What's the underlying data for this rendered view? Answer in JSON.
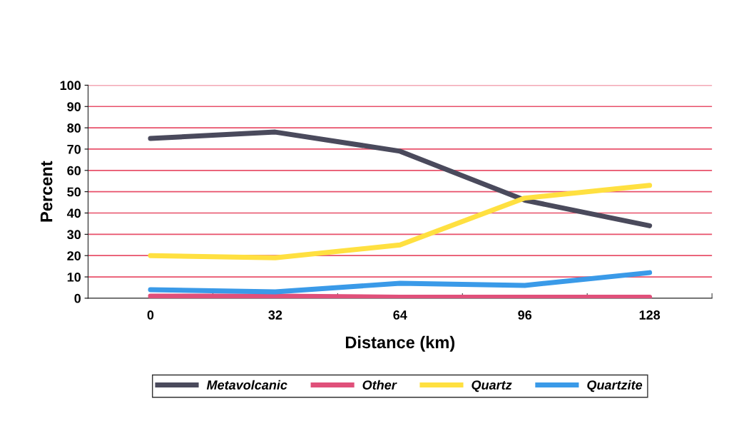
{
  "chart_data": {
    "type": "line",
    "xlabel": "Distance (km)",
    "ylabel": "Percent",
    "categories": [
      "0",
      "32",
      "64",
      "96",
      "128"
    ],
    "series": [
      {
        "name": "Metavolcanic",
        "color": "#4a4a5c",
        "values": [
          75,
          78,
          69,
          46,
          34
        ]
      },
      {
        "name": "Other",
        "color": "#e0507a",
        "values": [
          1,
          1,
          0.5,
          0.5,
          0.5
        ]
      },
      {
        "name": "Quartz",
        "color": "#ffe040",
        "values": [
          20,
          19,
          25,
          47,
          53
        ]
      },
      {
        "name": "Quartzite",
        "color": "#3a9ae8",
        "values": [
          4,
          3,
          7,
          6,
          12
        ]
      }
    ],
    "ylim": [
      0,
      100
    ],
    "yticks": [
      0,
      10,
      20,
      30,
      40,
      50,
      60,
      70,
      80,
      90,
      100
    ],
    "grid": "y",
    "legend": "bottom",
    "marker": "none",
    "line_style": "solid"
  }
}
